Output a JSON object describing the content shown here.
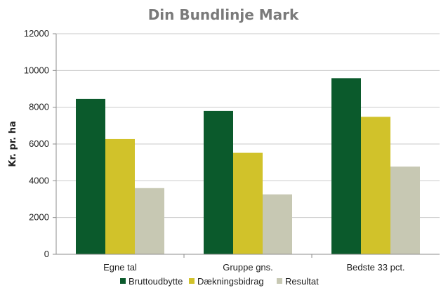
{
  "chart_data": {
    "type": "bar",
    "title": "Din Bundlinje Mark",
    "xlabel": "",
    "ylabel": "Kr. pr. ha",
    "ylim": [
      0,
      12000
    ],
    "yticks": [
      0,
      2000,
      4000,
      6000,
      8000,
      10000,
      12000
    ],
    "grid": true,
    "legend_position": "bottom",
    "categories": [
      "Egne tal",
      "Gruppe gns.",
      "Bedste 33 pct."
    ],
    "series": [
      {
        "name": "Bruttoudbytte",
        "color": "#0b5a2c",
        "values": [
          8450,
          7800,
          9580
        ]
      },
      {
        "name": "Dækningsbidrag",
        "color": "#d1c22a",
        "values": [
          6270,
          5520,
          7480
        ]
      },
      {
        "name": "Resultat",
        "color": "#c7c8b3",
        "values": [
          3600,
          3260,
          4770
        ]
      }
    ]
  }
}
